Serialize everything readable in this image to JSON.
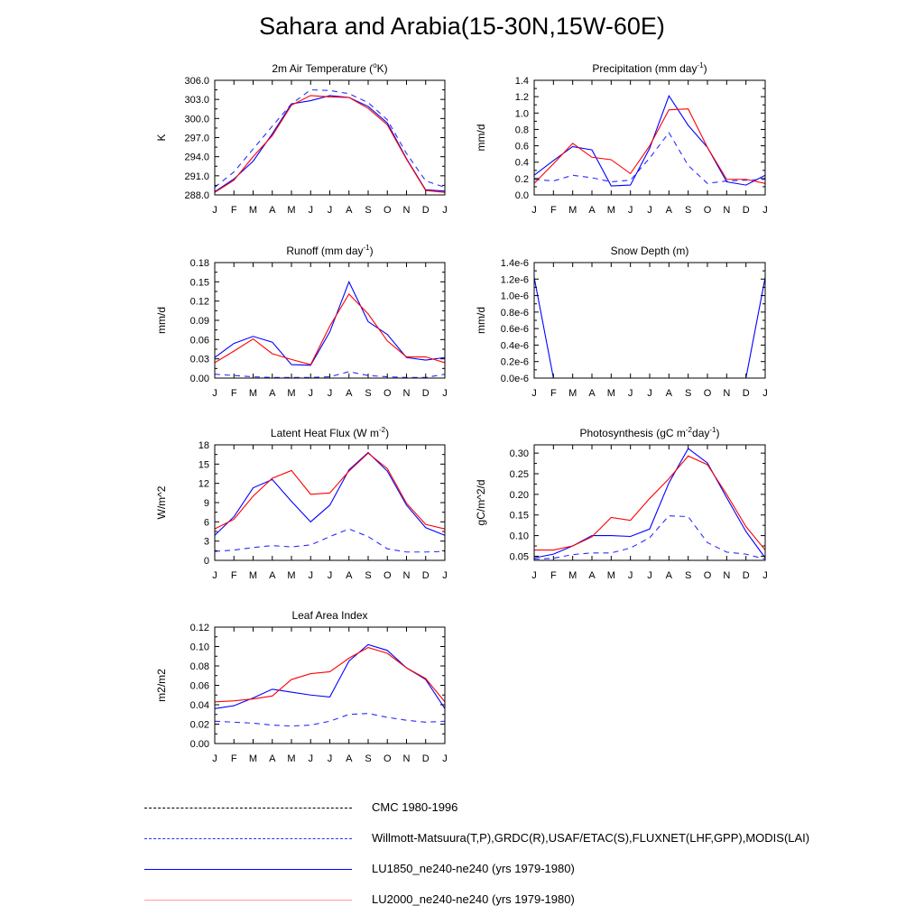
{
  "title": "Sahara and Arabia(15-30N,15W-60E)",
  "colors": {
    "CMC 1980-1996": "#000000",
    "obs": "#1a1aff",
    "LU1850": "#0000ff",
    "LU2000": "#ff0000"
  },
  "legend": [
    {
      "label": "CMC 1980-1996",
      "color": "#000000",
      "style": "dashed"
    },
    {
      "label": "Willmott-Matsuura(T,P),GRDC(R),USAF/ETAC(S),FLUXNET(LHF,GPP),MODIS(LAI)",
      "color": "#2b2bff",
      "style": "dashed"
    },
    {
      "label": "LU1850_ne240-ne240 (yrs 1979-1980)",
      "color": "#0000ff",
      "style": "solid"
    },
    {
      "label": "LU2000_ne240-ne240 (yrs 1979-1980)",
      "color": "#ff0000",
      "style": "solid"
    }
  ],
  "chart_data": [
    {
      "type": "line",
      "title": "2m Air Temperature (",
      "title_sup": "o",
      "title_post": "K)",
      "ylabel": "K",
      "categories": [
        "J",
        "F",
        "M",
        "A",
        "M",
        "J",
        "J",
        "A",
        "S",
        "O",
        "N",
        "D",
        "J"
      ],
      "ylim": [
        288.0,
        306.0
      ],
      "yticks": [
        288.0,
        291.0,
        294.0,
        297.0,
        300.0,
        303.0,
        306.0
      ],
      "ytick_labels": [
        "288.0",
        "291.0",
        "294.0",
        "297.0",
        "300.0",
        "303.0",
        "306.0"
      ],
      "series": [
        {
          "name": "obs",
          "color": "#2b2bff",
          "dash": true,
          "values": [
            289.2,
            291.6,
            295.2,
            298.8,
            302.3,
            304.5,
            304.4,
            303.9,
            302.5,
            299.8,
            294.5,
            290.2,
            289.2
          ]
        },
        {
          "name": "LU1850",
          "color": "#0000ff",
          "dash": false,
          "values": [
            288.5,
            290.5,
            293.3,
            297.6,
            302.3,
            302.8,
            303.6,
            303.3,
            301.9,
            299.3,
            293.7,
            288.8,
            288.6
          ]
        },
        {
          "name": "LU2000",
          "color": "#ff0000",
          "dash": false,
          "values": [
            288.4,
            290.3,
            294.0,
            297.3,
            302.1,
            303.6,
            303.4,
            303.3,
            301.6,
            299.0,
            293.6,
            288.7,
            288.4
          ]
        }
      ]
    },
    {
      "type": "line",
      "title": "Precipitation (mm day",
      "title_sup": "-1",
      "title_post": ")",
      "ylabel": "mm/d",
      "categories": [
        "J",
        "F",
        "M",
        "A",
        "M",
        "J",
        "J",
        "A",
        "S",
        "O",
        "N",
        "D",
        "J"
      ],
      "ylim": [
        0.0,
        1.4
      ],
      "yticks": [
        0.0,
        0.2,
        0.4,
        0.6,
        0.8,
        1.0,
        1.2,
        1.4
      ],
      "ytick_labels": [
        "0.0",
        "0.2",
        "0.4",
        "0.6",
        "0.8",
        "1.0",
        "1.2",
        "1.4"
      ],
      "series": [
        {
          "name": "obs",
          "color": "#2b2bff",
          "dash": true,
          "values": [
            0.19,
            0.17,
            0.24,
            0.21,
            0.16,
            0.18,
            0.45,
            0.76,
            0.36,
            0.14,
            0.17,
            0.18,
            0.19
          ]
        },
        {
          "name": "LU1850",
          "color": "#0000ff",
          "dash": false,
          "values": [
            0.24,
            0.42,
            0.59,
            0.55,
            0.11,
            0.12,
            0.57,
            1.21,
            0.85,
            0.58,
            0.16,
            0.12,
            0.24
          ]
        },
        {
          "name": "LU2000",
          "color": "#ff0000",
          "dash": false,
          "values": [
            0.14,
            0.38,
            0.63,
            0.46,
            0.43,
            0.26,
            0.6,
            1.04,
            1.05,
            0.58,
            0.19,
            0.19,
            0.14
          ]
        }
      ]
    },
    {
      "type": "line",
      "title": "Runoff (mm day",
      "title_sup": "-1",
      "title_post": ")",
      "ylabel": "mm/d",
      "categories": [
        "J",
        "F",
        "M",
        "A",
        "M",
        "J",
        "J",
        "A",
        "S",
        "O",
        "N",
        "D",
        "J"
      ],
      "ylim": [
        0.0,
        0.18
      ],
      "yticks": [
        0.0,
        0.03,
        0.06,
        0.09,
        0.12,
        0.15,
        0.18
      ],
      "ytick_labels": [
        "0.00",
        "0.03",
        "0.06",
        "0.09",
        "0.12",
        "0.15",
        "0.18"
      ],
      "series": [
        {
          "name": "obs",
          "color": "#2b2bff",
          "dash": true,
          "values": [
            0.006,
            0.004,
            0.002,
            0.001,
            0.001,
            0.001,
            0.002,
            0.01,
            0.004,
            0.002,
            0.001,
            0.001,
            0.006
          ]
        },
        {
          "name": "LU1850",
          "color": "#0000ff",
          "dash": false,
          "values": [
            0.032,
            0.054,
            0.065,
            0.056,
            0.021,
            0.02,
            0.072,
            0.15,
            0.088,
            0.068,
            0.032,
            0.028,
            0.032
          ]
        },
        {
          "name": "LU2000",
          "color": "#ff0000",
          "dash": false,
          "values": [
            0.024,
            0.042,
            0.061,
            0.038,
            0.029,
            0.021,
            0.081,
            0.131,
            0.1,
            0.058,
            0.033,
            0.033,
            0.024
          ]
        }
      ]
    },
    {
      "type": "line",
      "title": "Snow Depth (m)",
      "title_sup": "",
      "title_post": "",
      "ylabel": "mm/d",
      "categories": [
        "J",
        "F",
        "M",
        "A",
        "M",
        "J",
        "J",
        "A",
        "S",
        "O",
        "N",
        "D",
        "J"
      ],
      "ylim": [
        0.0,
        1.4e-06
      ],
      "yticks": [
        0.0,
        2e-07,
        4e-07,
        6e-07,
        8e-07,
        1e-06,
        1.2e-06,
        1.4e-06
      ],
      "ytick_labels": [
        "0.0e-6",
        "0.2e-6",
        "0.4e-6",
        "0.6e-6",
        "0.8e-6",
        "1.0e-6",
        "1.2e-6",
        "1.4e-6"
      ],
      "series": [
        {
          "name": "CMC",
          "color": "#000000",
          "dash": false,
          "values": [
            0,
            0,
            0,
            0,
            0,
            0,
            0,
            0,
            0,
            0,
            0,
            0,
            0
          ]
        },
        {
          "name": "LU2000",
          "color": "#ff0000",
          "dash": false,
          "values": [
            0,
            0,
            0,
            0,
            0,
            0,
            0,
            0,
            0,
            0,
            0,
            0,
            0
          ]
        },
        {
          "name": "LU1850",
          "color": "#0000ff",
          "dash": false,
          "values": [
            1.22e-06,
            0,
            0,
            0,
            0,
            0,
            0,
            0,
            0,
            0,
            0,
            0,
            1.22e-06
          ]
        }
      ]
    },
    {
      "type": "line",
      "title": "Latent Heat Flux (W m",
      "title_sup": "-2",
      "title_post": ")",
      "ylabel": "W/m^2",
      "categories": [
        "J",
        "F",
        "M",
        "A",
        "M",
        "J",
        "J",
        "A",
        "S",
        "O",
        "N",
        "D",
        "J"
      ],
      "ylim": [
        0,
        18
      ],
      "yticks": [
        0,
        3,
        6,
        9,
        12,
        15,
        18
      ],
      "ytick_labels": [
        "0",
        "3",
        "6",
        "9",
        "12",
        "15",
        "18"
      ],
      "series": [
        {
          "name": "obs",
          "color": "#2b2bff",
          "dash": true,
          "values": [
            1.4,
            1.6,
            2.0,
            2.3,
            2.1,
            2.4,
            3.7,
            4.9,
            3.7,
            1.8,
            1.3,
            1.3,
            1.4
          ]
        },
        {
          "name": "LU1850",
          "color": "#0000ff",
          "dash": false,
          "values": [
            3.9,
            6.8,
            11.3,
            12.6,
            9.2,
            6.0,
            8.6,
            14.1,
            16.8,
            13.9,
            8.6,
            5.1,
            3.9
          ]
        },
        {
          "name": "LU2000",
          "color": "#ff0000",
          "dash": false,
          "values": [
            4.9,
            6.4,
            10.0,
            12.8,
            14.0,
            10.3,
            10.5,
            13.9,
            16.7,
            14.3,
            8.9,
            5.6,
            4.9
          ]
        }
      ]
    },
    {
      "type": "line",
      "title": "Photosynthesis (gC m",
      "title_sup": "-2",
      "title_post": "day",
      "title_sup2": "-1",
      "title_post2": ")",
      "ylabel": "gC/m^2/d",
      "categories": [
        "J",
        "F",
        "M",
        "A",
        "M",
        "J",
        "J",
        "A",
        "S",
        "O",
        "N",
        "D",
        "J"
      ],
      "ylim": [
        0.04,
        0.32
      ],
      "yticks": [
        0.05,
        0.1,
        0.15,
        0.2,
        0.25,
        0.3
      ],
      "ytick_labels": [
        "0.05",
        "0.10",
        "0.15",
        "0.20",
        "0.25",
        "0.30"
      ],
      "series": [
        {
          "name": "obs",
          "color": "#2b2bff",
          "dash": true,
          "values": [
            0.043,
            0.045,
            0.054,
            0.058,
            0.058,
            0.07,
            0.095,
            0.148,
            0.146,
            0.083,
            0.06,
            0.055,
            0.043
          ]
        },
        {
          "name": "LU1850",
          "color": "#0000ff",
          "dash": false,
          "values": [
            0.046,
            0.055,
            0.075,
            0.1,
            0.1,
            0.098,
            0.116,
            0.228,
            0.311,
            0.276,
            0.192,
            0.11,
            0.046
          ]
        },
        {
          "name": "LU2000",
          "color": "#ff0000",
          "dash": false,
          "values": [
            0.065,
            0.065,
            0.075,
            0.097,
            0.144,
            0.137,
            0.19,
            0.238,
            0.293,
            0.272,
            0.2,
            0.122,
            0.065
          ]
        }
      ]
    },
    {
      "type": "line",
      "title": "Leaf Area Index",
      "title_sup": "",
      "title_post": "",
      "ylabel": "m2/m2",
      "categories": [
        "J",
        "F",
        "M",
        "A",
        "M",
        "J",
        "J",
        "A",
        "S",
        "O",
        "N",
        "D",
        "J"
      ],
      "ylim": [
        0.0,
        0.12
      ],
      "yticks": [
        0.0,
        0.02,
        0.04,
        0.06,
        0.08,
        0.1,
        0.12
      ],
      "ytick_labels": [
        "0.00",
        "0.02",
        "0.04",
        "0.06",
        "0.08",
        "0.10",
        "0.12"
      ],
      "series": [
        {
          "name": "obs",
          "color": "#2b2bff",
          "dash": true,
          "values": [
            0.023,
            0.022,
            0.021,
            0.019,
            0.018,
            0.019,
            0.023,
            0.03,
            0.031,
            0.027,
            0.024,
            0.022,
            0.023
          ]
        },
        {
          "name": "LU1850",
          "color": "#0000ff",
          "dash": false,
          "values": [
            0.036,
            0.039,
            0.047,
            0.056,
            0.053,
            0.05,
            0.048,
            0.085,
            0.102,
            0.096,
            0.078,
            0.066,
            0.036
          ]
        },
        {
          "name": "LU2000",
          "color": "#ff0000",
          "dash": false,
          "values": [
            0.043,
            0.044,
            0.046,
            0.049,
            0.066,
            0.072,
            0.074,
            0.088,
            0.099,
            0.093,
            0.078,
            0.067,
            0.043
          ]
        }
      ]
    }
  ]
}
